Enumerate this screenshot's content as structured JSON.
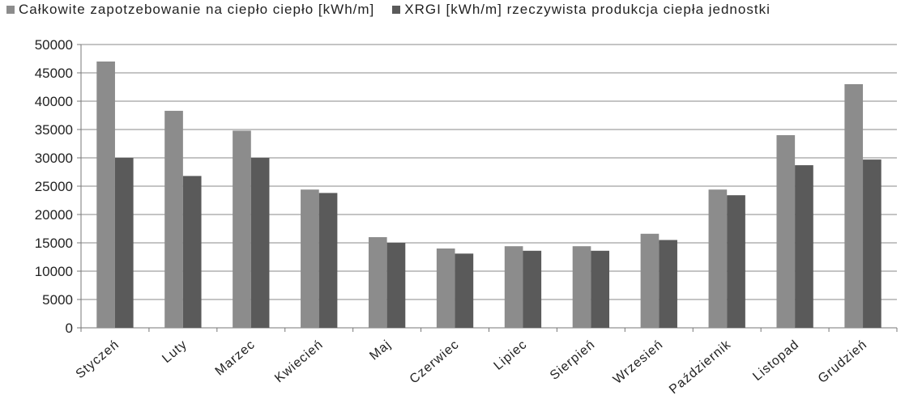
{
  "chart_data": {
    "type": "bar",
    "title": "",
    "xlabel": "",
    "ylabel": "",
    "ylim": [
      0,
      50000
    ],
    "yticks": [
      0,
      5000,
      10000,
      15000,
      20000,
      25000,
      30000,
      35000,
      40000,
      45000,
      50000
    ],
    "grid": true,
    "legend_position": "top",
    "categories": [
      "Styczeń",
      "Luty",
      "Marzec",
      "Kwiecień",
      "Maj",
      "Czerwiec",
      "Lipiec",
      "Sierpień",
      "Wrzesień",
      "Październik",
      "Listopad",
      "Grudzień"
    ],
    "series": [
      {
        "name": "Całkowite zapotzebowanie na ciepło ciepło [kWh/m]",
        "color": "#8c8c8c",
        "values": [
          47000,
          38300,
          34800,
          24400,
          16000,
          14000,
          14400,
          14400,
          16600,
          24400,
          34000,
          43000
        ]
      },
      {
        "name": "XRGI [kWh/m] rzeczywista produkcja ciepła jednostki",
        "color": "#5a5a5a",
        "values": [
          30000,
          26800,
          30000,
          23800,
          15000,
          13100,
          13600,
          13600,
          15500,
          23400,
          28700,
          29700
        ]
      }
    ]
  }
}
